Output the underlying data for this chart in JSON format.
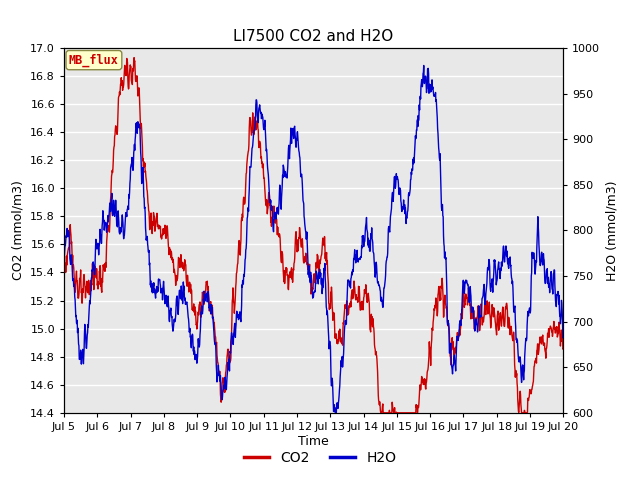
{
  "title": "LI7500 CO2 and H2O",
  "xlabel": "Time",
  "ylabel_left": "CO2 (mmol/m3)",
  "ylabel_right": "H2O (mmol/m3)",
  "co2_ylim": [
    14.4,
    17.0
  ],
  "h2o_ylim": [
    600,
    1000
  ],
  "co2_yticks": [
    14.4,
    14.6,
    14.8,
    15.0,
    15.2,
    15.4,
    15.6,
    15.8,
    16.0,
    16.2,
    16.4,
    16.6,
    16.8,
    17.0
  ],
  "h2o_yticks": [
    600,
    650,
    700,
    750,
    800,
    850,
    900,
    950,
    1000
  ],
  "xtick_labels": [
    "Jul 5",
    "Jul 6",
    "Jul 7",
    "Jul 8",
    "Jul 9",
    "Jul 10",
    "Jul 11",
    "Jul 12",
    "Jul 13",
    "Jul 14",
    "Jul 15",
    "Jul 16",
    "Jul 17",
    "Jul 18",
    "Jul 19",
    "Jul 20"
  ],
  "co2_color": "#cc0000",
  "h2o_color": "#0000cc",
  "line_width": 1.0,
  "fig_bg_color": "#ffffff",
  "plot_bg_color": "#e8e8e8",
  "grid_color": "#ffffff",
  "annotation_text": "MB_flux",
  "annotation_bg": "#ffffcc",
  "annotation_border": "#888844",
  "annotation_text_color": "#cc0000",
  "title_fontsize": 11,
  "axis_label_fontsize": 9,
  "tick_fontsize": 8,
  "legend_fontsize": 10
}
